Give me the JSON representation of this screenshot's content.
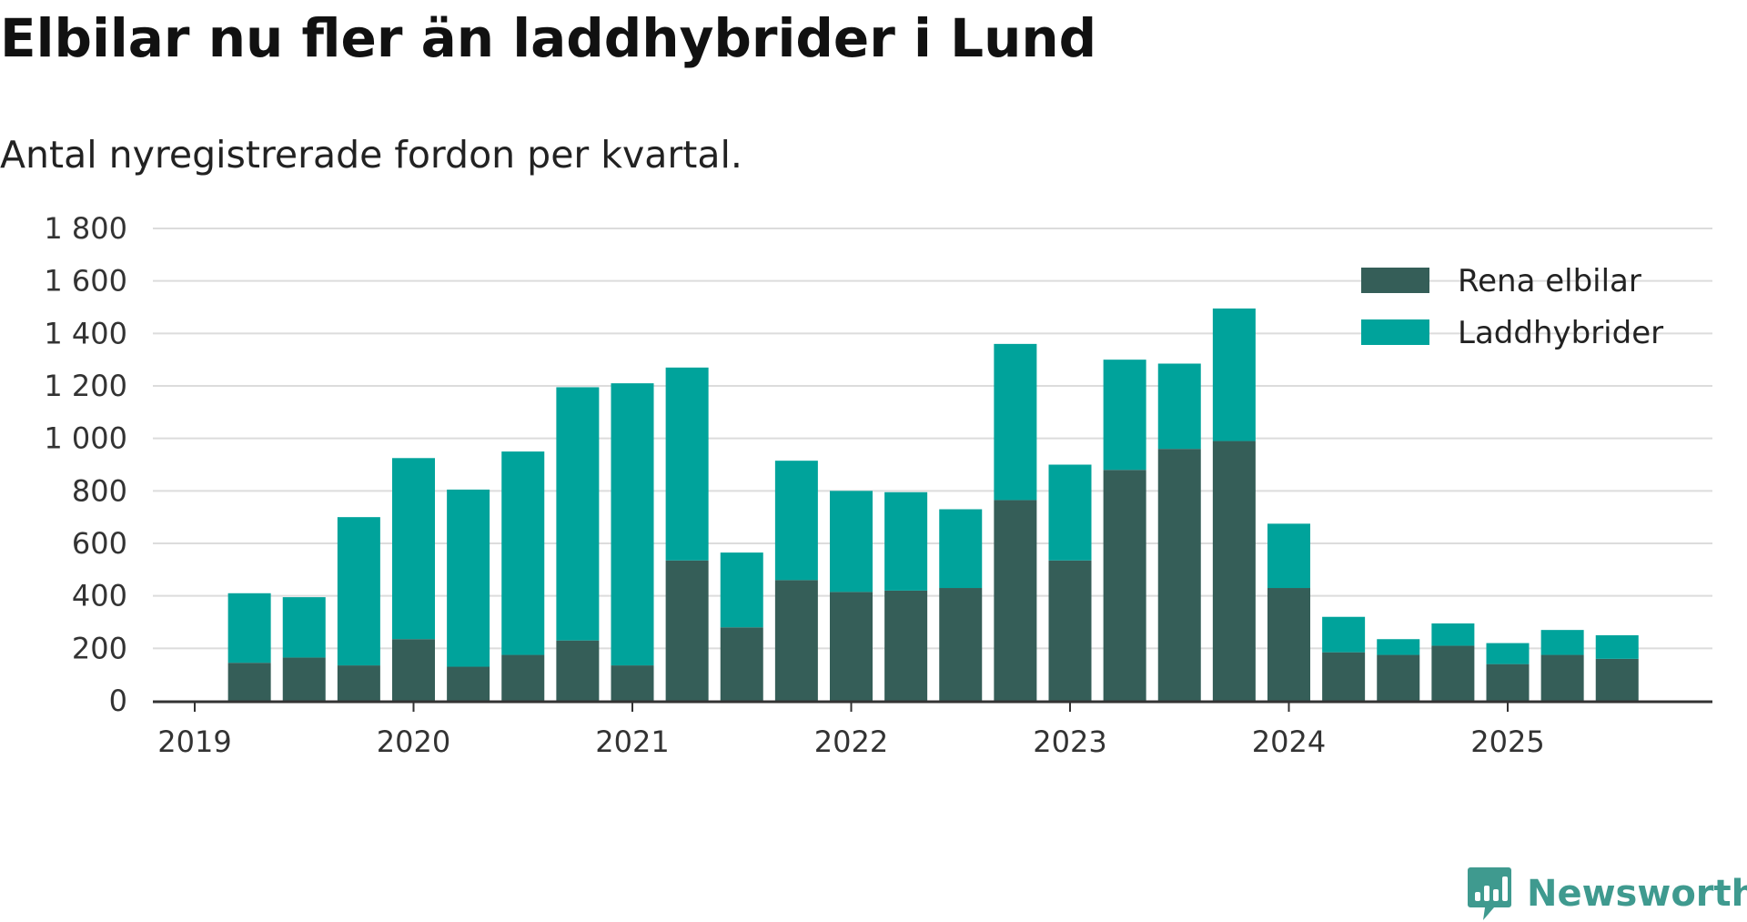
{
  "chart_data": {
    "type": "bar",
    "stacked": true,
    "title": "Elbilar nu fler än laddhybrider i Lund",
    "subtitle": "Antal nyregistrerade fordon per kvartal.",
    "xlabel": "",
    "ylabel": "",
    "ylim": [
      0,
      1800
    ],
    "yticks": [
      0,
      200,
      400,
      600,
      800,
      1000,
      1200,
      1400,
      1600,
      1800
    ],
    "ytick_labels": [
      "0",
      "200",
      "400",
      "600",
      "800",
      "1 000",
      "1 200",
      "1 400",
      "1 600",
      "1 800"
    ],
    "xticks": [
      "2019",
      "2020",
      "2021",
      "2022",
      "2023",
      "2024",
      "2025"
    ],
    "grid": true,
    "legend_position": "top-right",
    "categories": [
      "2019 Q2",
      "2019 Q3",
      "2019 Q4",
      "2020 Q1",
      "2020 Q2",
      "2020 Q3",
      "2020 Q4",
      "2021 Q1",
      "2021 Q2",
      "2021 Q3",
      "2021 Q4",
      "2022 Q1",
      "2022 Q2",
      "2022 Q3",
      "2022 Q4",
      "2023 Q1",
      "2023 Q2",
      "2023 Q3",
      "2023 Q4",
      "2024 Q1",
      "2024 Q2",
      "2024 Q3",
      "2024 Q4",
      "2025 Q1",
      "2025 Q2",
      "2025 Q3"
    ],
    "series": [
      {
        "name": "Rena elbilar",
        "color": "#355e58",
        "values": [
          145,
          165,
          135,
          235,
          130,
          175,
          230,
          135,
          535,
          280,
          460,
          415,
          420,
          430,
          765,
          535,
          880,
          960,
          990,
          430,
          185,
          175,
          210,
          140,
          175,
          160
        ]
      },
      {
        "name": "Laddhybrider",
        "color": "#00a39b",
        "values": [
          265,
          230,
          565,
          690,
          675,
          775,
          965,
          1075,
          735,
          285,
          455,
          385,
          375,
          300,
          595,
          365,
          420,
          325,
          505,
          245,
          135,
          60,
          85,
          80,
          95,
          90
        ]
      }
    ]
  },
  "brand": {
    "name": "Newsworthy",
    "color": "#3f9a8f"
  }
}
